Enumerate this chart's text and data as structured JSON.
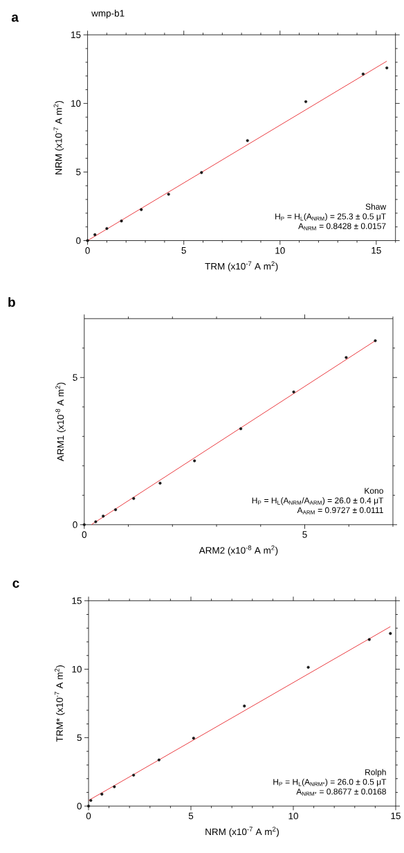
{
  "chart_data": [
    {
      "type": "scatter",
      "title": "a",
      "subtitle": "wmp-b1",
      "xlabel": "TRM (x10$^{-7}$ A m$^{2}$)",
      "ylabel": "NRM (x10$^{-7}$ A m$^{2}$)",
      "annotations": [
        "Shaw",
        "H$_{P}$ = H$_{L}$(A$_{NRM}$) = 25.3 ± 0.5  μT",
        "A$_{NRM}$ = 0.8428 ± 0.0157"
      ],
      "xlim": [
        0,
        16
      ],
      "ylim": [
        0,
        15
      ],
      "xticks": [
        0,
        {
          "value": 1,
          "label": null
        },
        {
          "value": 2,
          "label": null
        },
        {
          "value": 3,
          "label": null
        },
        {
          "value": 4,
          "label": null
        },
        5,
        {
          "value": 6,
          "label": null
        },
        {
          "value": 7,
          "label": null
        },
        {
          "value": 8,
          "label": null
        },
        {
          "value": 9,
          "label": null
        },
        10,
        {
          "value": 11,
          "label": null
        },
        {
          "value": 12,
          "label": null
        },
        {
          "value": 13,
          "label": null
        },
        {
          "value": 14,
          "label": null
        },
        15,
        {
          "value": 16,
          "label": null
        }
      ],
      "yticks": [
        0,
        {
          "value": 1,
          "label": null
        },
        {
          "value": 2,
          "label": null
        },
        {
          "value": 3,
          "label": null
        },
        {
          "value": 4,
          "label": null
        },
        5,
        {
          "value": 6,
          "label": null
        },
        {
          "value": 7,
          "label": null
        },
        {
          "value": 8,
          "label": null
        },
        {
          "value": 9,
          "label": null
        },
        10,
        {
          "value": 11,
          "label": null
        },
        {
          "value": 12,
          "label": null
        },
        {
          "value": 13,
          "label": null
        },
        {
          "value": 14,
          "label": null
        },
        15
      ],
      "series": [
        {
          "type": "scatter",
          "marker": "circle",
          "color": "#1a1a1a",
          "x": [
            0,
            0.38,
            1.0,
            1.76,
            2.79,
            4.21,
            5.92,
            8.31,
            11.34,
            14.32,
            15.55
          ],
          "values": [
            0,
            0.43,
            0.88,
            1.43,
            2.26,
            3.38,
            4.96,
            7.29,
            10.13,
            12.14,
            12.59
          ]
        },
        {
          "type": "line",
          "line_style": "solid",
          "color": "#e8262b",
          "x": [
            0,
            15.55
          ],
          "values": [
            0,
            13.08
          ]
        }
      ]
    },
    {
      "type": "scatter",
      "title": "b",
      "xlabel": "ARM2 (x10$^{-8}$ A m$^{2}$)",
      "ylabel": "ARM1 (x10$^{-8}$ A m$^{2}$)",
      "annotations": [
        "Kono",
        "H$_{P}$ = H$_{L}$(A$_{NRM}$/A$_{ARM}$) = 26.0 ± 0.4  μT",
        "A$_{ARM}$ = 0.9727 ± 0.0111"
      ],
      "xlim": [
        0,
        7
      ],
      "ylim": [
        0,
        7
      ],
      "xticks": [
        0,
        {
          "value": 1,
          "label": null
        },
        {
          "value": 2,
          "label": null
        },
        {
          "value": 3,
          "label": null
        },
        {
          "value": 4,
          "label": null
        },
        5,
        {
          "value": 6,
          "label": null
        },
        {
          "value": 7,
          "label": null
        }
      ],
      "yticks": [
        0,
        {
          "value": 1,
          "label": null
        },
        {
          "value": 2,
          "label": null
        },
        {
          "value": 3,
          "label": null
        },
        {
          "value": 4,
          "label": null
        },
        5,
        {
          "value": 6,
          "label": null
        }
      ],
      "series": [
        {
          "type": "scatter",
          "marker": "circle",
          "color": "#1a1a1a",
          "x": [
            0,
            0.26,
            0.43,
            0.71,
            1.12,
            1.72,
            2.5,
            3.55,
            4.75,
            5.94,
            6.6
          ],
          "values": [
            0,
            0.1,
            0.29,
            0.51,
            0.89,
            1.41,
            2.17,
            3.26,
            4.51,
            5.68,
            6.25
          ]
        },
        {
          "type": "line",
          "line_style": "solid",
          "color": "#e8262b",
          "x": [
            0.16,
            6.6
          ],
          "values": [
            0,
            6.25
          ]
        }
      ]
    },
    {
      "type": "scatter",
      "title": "c",
      "xlabel": "NRM (x10$^{-7}$ A m$^{2}$)",
      "ylabel": "TRM* (x10$^{-7}$ A m$^{2}$)",
      "annotations": [
        "Rolph",
        "H$_{P}$ = H$_{L}$(A$_{NRM*}$) = 26.0 ± 0.5 μT",
        "A$_{NRM*}$ = 0.8677 ± 0.0168"
      ],
      "xlim": [
        0,
        15
      ],
      "ylim": [
        0,
        15
      ],
      "xticks": [
        0,
        {
          "value": 1,
          "label": null
        },
        {
          "value": 2,
          "label": null
        },
        {
          "value": 3,
          "label": null
        },
        {
          "value": 4,
          "label": null
        },
        5,
        {
          "value": 6,
          "label": null
        },
        {
          "value": 7,
          "label": null
        },
        {
          "value": 8,
          "label": null
        },
        {
          "value": 9,
          "label": null
        },
        10,
        {
          "value": 11,
          "label": null
        },
        {
          "value": 12,
          "label": null
        },
        {
          "value": 13,
          "label": null
        },
        {
          "value": 14,
          "label": null
        },
        15
      ],
      "yticks": [
        0,
        {
          "value": 1,
          "label": null
        },
        {
          "value": 2,
          "label": null
        },
        {
          "value": 3,
          "label": null
        },
        {
          "value": 4,
          "label": null
        },
        5,
        {
          "value": 6,
          "label": null
        },
        {
          "value": 7,
          "label": null
        },
        {
          "value": 8,
          "label": null
        },
        {
          "value": 9,
          "label": null
        },
        10,
        {
          "value": 11,
          "label": null
        },
        {
          "value": 12,
          "label": null
        },
        {
          "value": 13,
          "label": null
        },
        {
          "value": 14,
          "label": null
        },
        15
      ],
      "series": [
        {
          "type": "scatter",
          "marker": "circle",
          "color": "#1a1a1a",
          "x": [
            0,
            0.11,
            0.65,
            1.26,
            2.2,
            3.44,
            5.13,
            7.61,
            10.73,
            13.71,
            14.74
          ],
          "values": [
            0,
            0.41,
            0.87,
            1.41,
            2.26,
            3.37,
            4.96,
            7.31,
            10.14,
            12.17,
            12.61
          ]
        },
        {
          "type": "line",
          "line_style": "solid",
          "color": "#e8262b",
          "x": [
            0,
            14.74
          ],
          "values": [
            0.41,
            13.11
          ]
        }
      ]
    }
  ]
}
